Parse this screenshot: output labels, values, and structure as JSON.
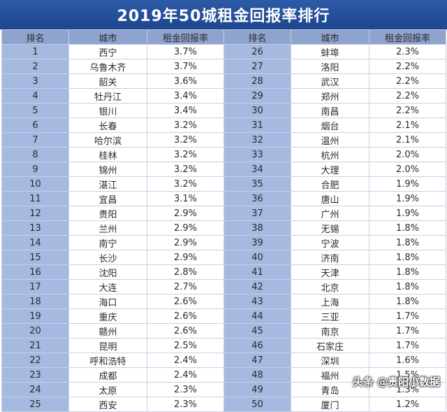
{
  "title": "2019年50城租金回报率排行",
  "headers": [
    "排名",
    "城市",
    "租金回报率",
    "排名",
    "城市",
    "租金回报率"
  ],
  "left_rows": [
    {
      "rank": "1",
      "city": "西宁",
      "rate": "3.7%"
    },
    {
      "rank": "2",
      "city": "乌鲁木齐",
      "rate": "3.7%"
    },
    {
      "rank": "3",
      "city": "韶关",
      "rate": "3.6%"
    },
    {
      "rank": "4",
      "city": "牡丹江",
      "rate": "3.4%"
    },
    {
      "rank": "5",
      "city": "银川",
      "rate": "3.4%"
    },
    {
      "rank": "6",
      "city": "长春",
      "rate": "3.2%"
    },
    {
      "rank": "7",
      "city": "哈尔滨",
      "rate": "3.2%"
    },
    {
      "rank": "8",
      "city": "桂林",
      "rate": "3.2%"
    },
    {
      "rank": "9",
      "city": "锦州",
      "rate": "3.2%"
    },
    {
      "rank": "10",
      "city": "湛江",
      "rate": "3.2%"
    },
    {
      "rank": "11",
      "city": "宜昌",
      "rate": "3.1%"
    },
    {
      "rank": "12",
      "city": "贵阳",
      "rate": "2.9%"
    },
    {
      "rank": "13",
      "city": "兰州",
      "rate": "2.9%"
    },
    {
      "rank": "14",
      "city": "南宁",
      "rate": "2.9%"
    },
    {
      "rank": "15",
      "city": "长沙",
      "rate": "2.9%"
    },
    {
      "rank": "16",
      "city": "沈阳",
      "rate": "2.8%"
    },
    {
      "rank": "17",
      "city": "大连",
      "rate": "2.7%"
    },
    {
      "rank": "18",
      "city": "海口",
      "rate": "2.6%"
    },
    {
      "rank": "19",
      "city": "重庆",
      "rate": "2.6%"
    },
    {
      "rank": "20",
      "city": "赣州",
      "rate": "2.6%"
    },
    {
      "rank": "21",
      "city": "昆明",
      "rate": "2.5%"
    },
    {
      "rank": "22",
      "city": "呼和浩特",
      "rate": "2.4%"
    },
    {
      "rank": "23",
      "city": "成都",
      "rate": "2.4%"
    },
    {
      "rank": "24",
      "city": "太原",
      "rate": "2.3%"
    },
    {
      "rank": "25",
      "city": "西安",
      "rate": "2.3%"
    }
  ],
  "right_rows": [
    {
      "rank": "26",
      "city": "蚌埠",
      "rate": "2.3%"
    },
    {
      "rank": "27",
      "city": "洛阳",
      "rate": "2.2%"
    },
    {
      "rank": "28",
      "city": "武汉",
      "rate": "2.2%"
    },
    {
      "rank": "29",
      "city": "郑州",
      "rate": "2.2%"
    },
    {
      "rank": "30",
      "city": "南昌",
      "rate": "2.2%"
    },
    {
      "rank": "31",
      "city": "烟台",
      "rate": "2.1%"
    },
    {
      "rank": "32",
      "city": "温州",
      "rate": "2.1%"
    },
    {
      "rank": "33",
      "city": "杭州",
      "rate": "2.0%"
    },
    {
      "rank": "34",
      "city": "大理",
      "rate": "2.0%"
    },
    {
      "rank": "35",
      "city": "合肥",
      "rate": "1.9%"
    },
    {
      "rank": "36",
      "city": "唐山",
      "rate": "1.9%"
    },
    {
      "rank": "37",
      "city": "广州",
      "rate": "1.9%"
    },
    {
      "rank": "38",
      "city": "无锡",
      "rate": "1.8%"
    },
    {
      "rank": "39",
      "city": "宁波",
      "rate": "1.8%"
    },
    {
      "rank": "40",
      "city": "济南",
      "rate": "1.8%"
    },
    {
      "rank": "41",
      "city": "天津",
      "rate": "1.8%"
    },
    {
      "rank": "42",
      "city": "北京",
      "rate": "1.8%"
    },
    {
      "rank": "43",
      "city": "上海",
      "rate": "1.8%"
    },
    {
      "rank": "44",
      "city": "三亚",
      "rate": "1.7%"
    },
    {
      "rank": "45",
      "city": "南京",
      "rate": "1.7%"
    },
    {
      "rank": "46",
      "city": "石家庄",
      "rate": "1.7%"
    },
    {
      "rank": "47",
      "city": "深圳",
      "rate": "1.6%"
    },
    {
      "rank": "48",
      "city": "福州",
      "rate": "1.5%"
    },
    {
      "rank": "49",
      "city": "青岛",
      "rate": "1.3%"
    },
    {
      "rank": "50",
      "city": "厦门",
      "rate": "1.2%"
    }
  ],
  "watermark": "头条 @贵阳小数据"
}
